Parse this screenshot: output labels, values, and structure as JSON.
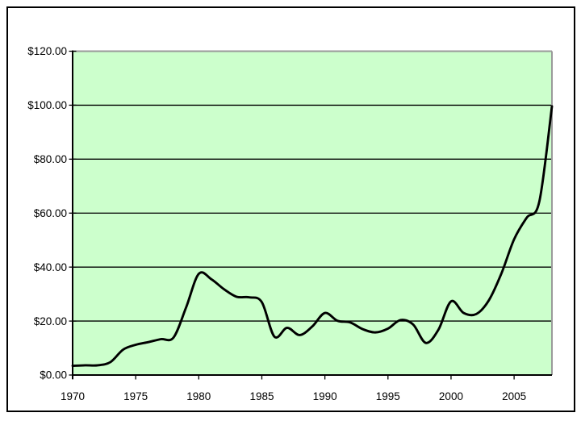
{
  "chart_data": {
    "type": "line",
    "title": "",
    "xlabel": "",
    "ylabel": "",
    "xlim": [
      1970,
      2008
    ],
    "ylim": [
      0,
      120
    ],
    "grid": "horizontal",
    "legend": "none",
    "line_smoothing": true,
    "x": [
      1970,
      1971,
      1972,
      1973,
      1974,
      1975,
      1976,
      1977,
      1978,
      1979,
      1980,
      1981,
      1982,
      1983,
      1984,
      1985,
      1986,
      1987,
      1988,
      1989,
      1990,
      1991,
      1992,
      1993,
      1994,
      1995,
      1996,
      1997,
      1998,
      1999,
      2000,
      2001,
      2002,
      2003,
      2004,
      2005,
      2006,
      2007,
      2008
    ],
    "values": [
      3.4,
      3.6,
      3.6,
      4.8,
      9.4,
      11.2,
      12.2,
      13.3,
      13.9,
      25.1,
      37.5,
      35.5,
      31.8,
      29.0,
      28.8,
      27.0,
      14.2,
      17.5,
      14.8,
      18.0,
      23.0,
      20.1,
      19.5,
      17.0,
      15.8,
      17.2,
      20.4,
      18.7,
      11.9,
      16.8,
      27.3,
      23.0,
      22.6,
      27.7,
      37.7,
      50.3,
      58.3,
      64.3,
      99.6
    ],
    "y_tick_values": [
      0,
      20,
      40,
      60,
      80,
      100,
      120
    ],
    "y_tick_labels": [
      "$0.00",
      "$20.00",
      "$40.00",
      "$60.00",
      "$80.00",
      "$100.00",
      "$120.00"
    ],
    "x_tick_values": [
      1970,
      1975,
      1980,
      1985,
      1990,
      1995,
      2000,
      2005
    ],
    "x_tick_labels": [
      "1970",
      "1975",
      "1980",
      "1985",
      "1990",
      "1995",
      "2000",
      "2005"
    ]
  },
  "style": {
    "page_bg": "#ffffff",
    "frame_color": "#000000",
    "plot_bg": "#ccffcc",
    "grid_color": "#000000",
    "plot_border_color": "#9a9a9a",
    "axis_color": "#000000",
    "line_color": "#000000",
    "text_color": "#000000"
  }
}
